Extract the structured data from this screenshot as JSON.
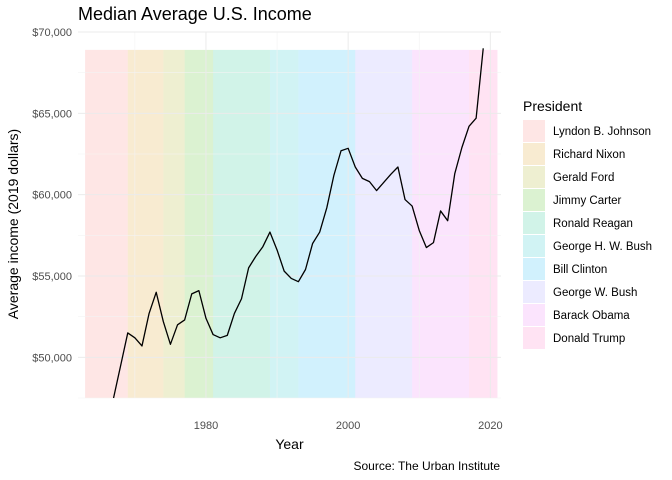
{
  "chart_data": {
    "type": "line",
    "title": "Median Average U.S. Income",
    "caption": "Source: The Urban Institute",
    "xlabel": "Year",
    "ylabel": "Average income (2019 dollars)",
    "xlim": [
      1962,
      2021.5
    ],
    "ylim": [
      47500,
      70000
    ],
    "x_ticks": [
      1980,
      2000,
      2020
    ],
    "x_tick_labels": [
      "1980",
      "2000",
      "2020"
    ],
    "y_ticks": [
      50000,
      55000,
      60000,
      65000,
      70000
    ],
    "y_tick_labels": [
      "$50,000",
      "$55,000",
      "$60,000",
      "$65,000",
      "$70,000"
    ],
    "grid": true,
    "legend": {
      "title": "President",
      "position": "right",
      "entries": [
        {
          "name": "Lyndon B. Johnson",
          "color": "#F8766D",
          "start": 1963,
          "end": 1969
        },
        {
          "name": "Richard Nixon",
          "color": "#D89000",
          "start": 1969,
          "end": 1974
        },
        {
          "name": "Gerald Ford",
          "color": "#A3A500",
          "start": 1974,
          "end": 1977
        },
        {
          "name": "Jimmy Carter",
          "color": "#39B600",
          "start": 1977,
          "end": 1981
        },
        {
          "name": "Ronald Reagan",
          "color": "#00BF7D",
          "start": 1981,
          "end": 1989
        },
        {
          "name": "George H. W. Bush",
          "color": "#00BFC4",
          "start": 1989,
          "end": 1993
        },
        {
          "name": "Bill Clinton",
          "color": "#00B0F6",
          "start": 1993,
          "end": 2001
        },
        {
          "name": "George W. Bush",
          "color": "#9590FF",
          "start": 2001,
          "end": 2009
        },
        {
          "name": "Barack Obama",
          "color": "#E76BF3",
          "start": 2009,
          "end": 2017
        },
        {
          "name": "Donald Trump",
          "color": "#FF62BC",
          "start": 2017,
          "end": 2021
        }
      ]
    },
    "series": [
      {
        "x": [
          1967,
          1968,
          1969,
          1970,
          1971,
          1972,
          1973,
          1974,
          1975,
          1976,
          1977,
          1978,
          1979,
          1980,
          1981,
          1982,
          1983,
          1984,
          1985,
          1986,
          1987,
          1988,
          1989,
          1990,
          1991,
          1992,
          1993,
          1994,
          1995,
          1996,
          1997,
          1998,
          1999,
          2000,
          2001,
          2002,
          2003,
          2004,
          2005,
          2006,
          2007,
          2008,
          2009,
          2010,
          2011,
          2012,
          2013,
          2014,
          2015,
          2016,
          2017,
          2018,
          2019
        ],
        "y": [
          47500,
          49500,
          51500,
          51200,
          50700,
          52700,
          54000,
          52200,
          50800,
          52000,
          52300,
          53900,
          54100,
          52400,
          51400,
          51200,
          51350,
          52700,
          53600,
          55500,
          56200,
          56800,
          57700,
          56600,
          55300,
          54850,
          54650,
          55400,
          57000,
          57700,
          59200,
          61200,
          62700,
          62850,
          61700,
          61000,
          60800,
          60250,
          60750,
          61250,
          61700,
          59700,
          59300,
          57800,
          56750,
          57050,
          59000,
          58400,
          61300,
          62900,
          64200,
          64700,
          69000
        ]
      }
    ]
  }
}
